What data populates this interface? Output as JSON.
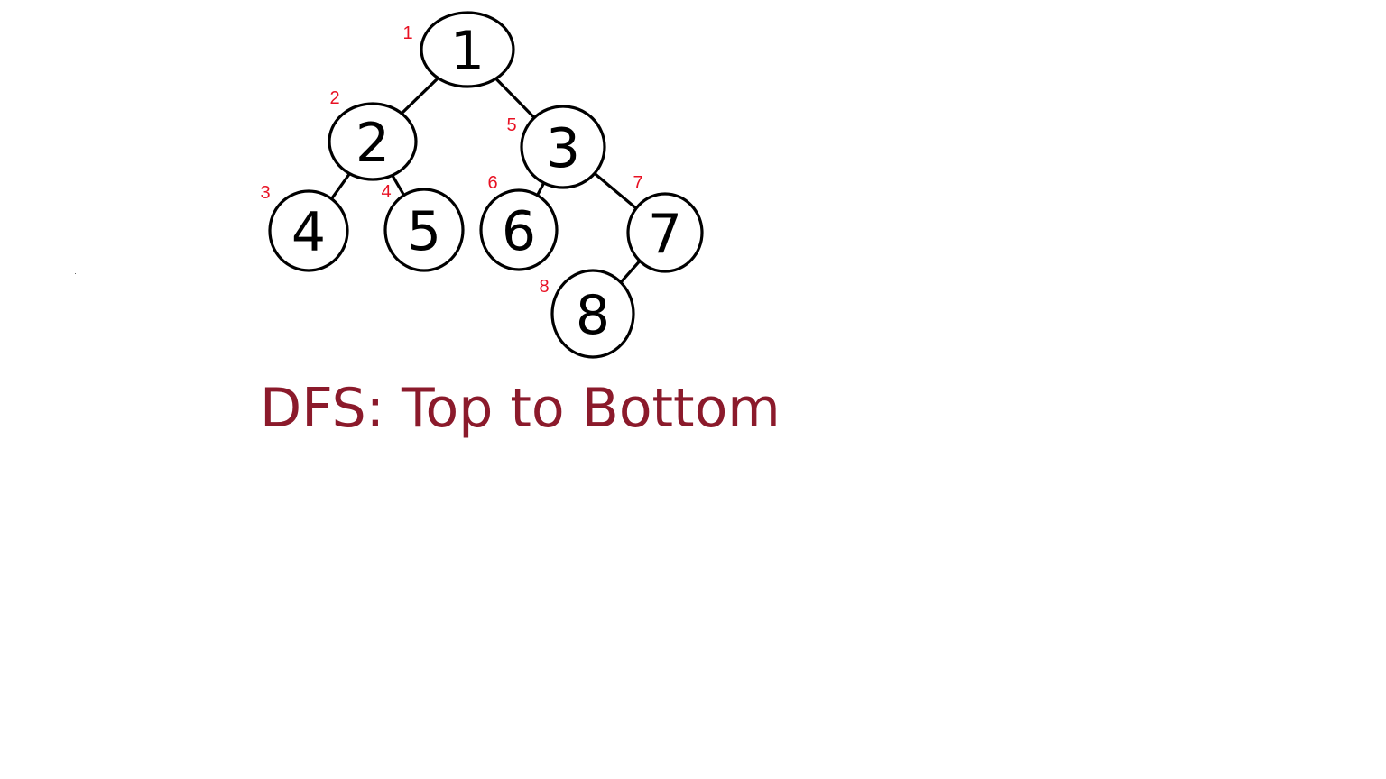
{
  "caption": "DFS: Top to Bottom",
  "colors": {
    "node_stroke": "#000000",
    "order_label": "#e81123",
    "caption": "#8b1a2b"
  },
  "nodes": [
    {
      "id": "1",
      "label": "1",
      "visit_order": "1"
    },
    {
      "id": "2",
      "label": "2",
      "visit_order": "2"
    },
    {
      "id": "3",
      "label": "3",
      "visit_order": "5"
    },
    {
      "id": "4",
      "label": "4",
      "visit_order": "3"
    },
    {
      "id": "5",
      "label": "5",
      "visit_order": "4"
    },
    {
      "id": "6",
      "label": "6",
      "visit_order": "6"
    },
    {
      "id": "7",
      "label": "7",
      "visit_order": "7"
    },
    {
      "id": "8",
      "label": "8",
      "visit_order": "8"
    }
  ],
  "edges": [
    {
      "from": "1",
      "to": "2"
    },
    {
      "from": "1",
      "to": "3"
    },
    {
      "from": "2",
      "to": "4"
    },
    {
      "from": "2",
      "to": "5"
    },
    {
      "from": "3",
      "to": "6"
    },
    {
      "from": "3",
      "to": "7"
    },
    {
      "from": "7",
      "to": "8"
    }
  ]
}
